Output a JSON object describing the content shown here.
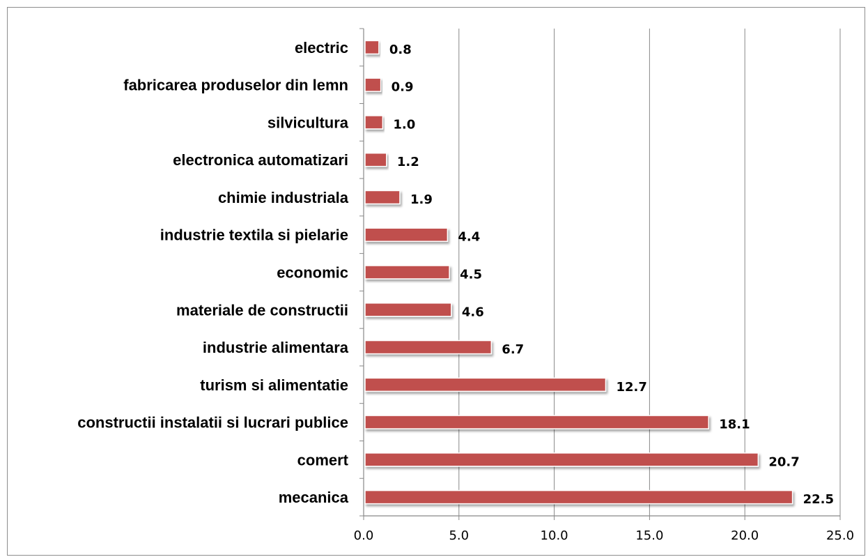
{
  "chart_data": {
    "type": "bar",
    "orientation": "horizontal",
    "title": "",
    "xlabel": "",
    "ylabel": "",
    "categories": [
      "electric",
      "fabricarea produselor din lemn",
      "silvicultura",
      "electronica automatizari",
      "chimie industriala",
      "industrie textila si pielarie",
      "economic",
      "materiale de constructii",
      "industrie alimentara",
      "turism si alimentatie",
      "constructii instalatii si lucrari publice",
      "comert",
      "mecanica"
    ],
    "values": [
      0.8,
      0.9,
      1.0,
      1.2,
      1.9,
      4.4,
      4.5,
      4.6,
      6.7,
      12.7,
      18.1,
      20.7,
      22.5
    ],
    "value_labels": [
      "0.8",
      "0.9",
      "1.0",
      "1.2",
      "1.9",
      "4.4",
      "4.5",
      "4.6",
      "6.7",
      "12.7",
      "18.1",
      "20.7",
      "22.5"
    ],
    "xlim": [
      0,
      25
    ],
    "x_ticks": [
      "0.0",
      "5.0",
      "10.0",
      "15.0",
      "20.0",
      "25.0"
    ],
    "x_tick_values": [
      0,
      5,
      10,
      15,
      20,
      25
    ],
    "grid": "vertical",
    "legend": "none",
    "bar_color": "#C0504D",
    "bar_outline_color": "#ffffff",
    "grid_color": "#888888",
    "axis_color": "#888888"
  }
}
